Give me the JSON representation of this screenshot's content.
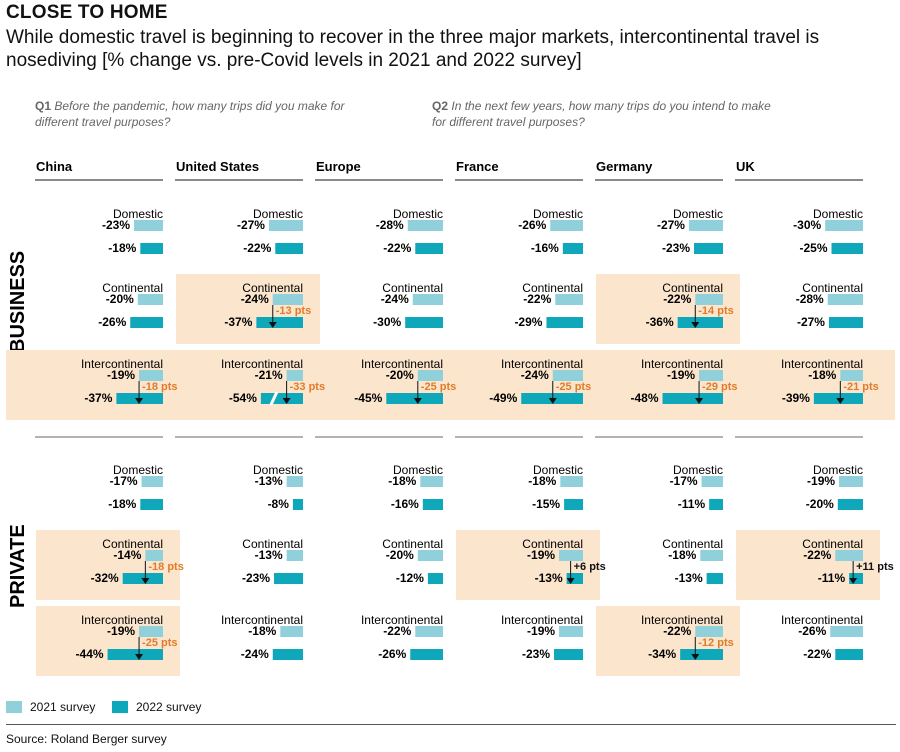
{
  "kicker": "CLOSE TO HOME",
  "headline": "While domestic travel is beginning to recover in the three major markets, intercontinental travel is nosediving [% change vs. pre-Covid levels in 2021 and 2022 survey]",
  "q1": {
    "label": "Q1",
    "text": "Before the pandemic, how many trips did you make for different travel purposes?"
  },
  "q2": {
    "label": "Q2",
    "text": "In the next few years, how many trips do you intend to make for different travel purposes?"
  },
  "legend": {
    "s2021": "2021 survey",
    "s2022": "2022 survey"
  },
  "source": "Source: Roland Berger survey",
  "colors": {
    "s2021": "#8fd0da",
    "s2022": "#0fa7ba",
    "highlight": "#fbe5cd",
    "annotation": "#e07c2a",
    "positive_annotation": "#111111"
  },
  "chart_data": {
    "type": "bar",
    "orientation": "horizontal",
    "units": "% change vs. pre-Covid levels",
    "countries": [
      "China",
      "United States",
      "Europe",
      "France",
      "Germany",
      "UK"
    ],
    "segments": [
      "BUSINESS",
      "PRIVATE"
    ],
    "purposes": [
      "Domestic",
      "Continental",
      "Intercontinental"
    ],
    "series_names": [
      "2021 survey",
      "2022 survey"
    ],
    "values": {
      "BUSINESS": {
        "Domestic": {
          "2021": [
            -23,
            -27,
            -28,
            -26,
            -27,
            -30
          ],
          "2022": [
            -18,
            -22,
            -22,
            -16,
            -23,
            -25
          ]
        },
        "Continental": {
          "2021": [
            -20,
            -24,
            -24,
            -22,
            -22,
            -28
          ],
          "2022": [
            -26,
            -37,
            -30,
            -29,
            -36,
            -27
          ]
        },
        "Intercontinental": {
          "2021": [
            -19,
            -21,
            -20,
            -24,
            -19,
            -18
          ],
          "2022": [
            -37,
            -54,
            -45,
            -49,
            -48,
            -39
          ]
        }
      },
      "PRIVATE": {
        "Domestic": {
          "2021": [
            -17,
            -13,
            -18,
            -18,
            -17,
            -19
          ],
          "2022": [
            -18,
            -8,
            -16,
            -15,
            -11,
            -20
          ]
        },
        "Continental": {
          "2021": [
            -14,
            -13,
            -20,
            -19,
            -18,
            -22
          ],
          "2022": [
            -32,
            -23,
            -12,
            -13,
            -13,
            -11
          ]
        },
        "Intercontinental": {
          "2021": [
            -19,
            -18,
            -22,
            -19,
            -22,
            -26
          ],
          "2022": [
            -44,
            -24,
            -26,
            -23,
            -34,
            -22
          ]
        }
      }
    },
    "highlights": [
      {
        "segment": "BUSINESS",
        "purpose": "Continental",
        "country": "United States",
        "label": "-13 pts"
      },
      {
        "segment": "BUSINESS",
        "purpose": "Continental",
        "country": "Germany",
        "label": "-14 pts"
      },
      {
        "segment": "BUSINESS",
        "purpose": "Intercontinental",
        "country": "China",
        "label": "-18 pts"
      },
      {
        "segment": "BUSINESS",
        "purpose": "Intercontinental",
        "country": "United States",
        "label": "-33 pts"
      },
      {
        "segment": "BUSINESS",
        "purpose": "Intercontinental",
        "country": "Europe",
        "label": "-25 pts"
      },
      {
        "segment": "BUSINESS",
        "purpose": "Intercontinental",
        "country": "France",
        "label": "-25 pts"
      },
      {
        "segment": "BUSINESS",
        "purpose": "Intercontinental",
        "country": "Germany",
        "label": "-29 pts"
      },
      {
        "segment": "BUSINESS",
        "purpose": "Intercontinental",
        "country": "UK",
        "label": "-21 pts"
      },
      {
        "segment": "PRIVATE",
        "purpose": "Continental",
        "country": "China",
        "label": "-18 pts"
      },
      {
        "segment": "PRIVATE",
        "purpose": "Continental",
        "country": "France",
        "label": "+6 pts"
      },
      {
        "segment": "PRIVATE",
        "purpose": "Continental",
        "country": "UK",
        "label": "+11 pts"
      },
      {
        "segment": "PRIVATE",
        "purpose": "Intercontinental",
        "country": "China",
        "label": "-25 pts"
      },
      {
        "segment": "PRIVATE",
        "purpose": "Intercontinental",
        "country": "Germany",
        "label": "-12 pts"
      }
    ],
    "axis_break": {
      "country": "United States",
      "segment": "BUSINESS",
      "purpose": "Intercontinental"
    }
  }
}
